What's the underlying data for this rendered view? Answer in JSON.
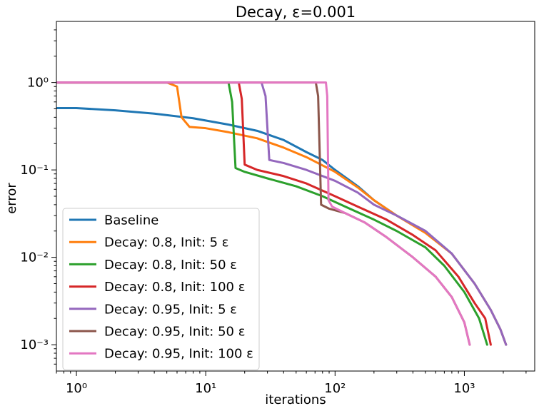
{
  "chart_data": {
    "type": "line",
    "title": "Decay, ε=0.001",
    "xlabel": "iterations",
    "ylabel": "error",
    "xscale": "log",
    "yscale": "log",
    "xlim": [
      0.7,
      3500
    ],
    "ylim": [
      0.0005,
      5
    ],
    "grid": false,
    "legend_position": "lower-left",
    "x_ticks": [
      {
        "value": 1,
        "label": "10⁰"
      },
      {
        "value": 10,
        "label": "10¹"
      },
      {
        "value": 100,
        "label": "10²"
      },
      {
        "value": 1000,
        "label": "10³"
      }
    ],
    "y_ticks": [
      {
        "value": 0.001,
        "label": "10⁻³"
      },
      {
        "value": 0.01,
        "label": "10⁻²"
      },
      {
        "value": 0.1,
        "label": "10⁻¹"
      },
      {
        "value": 1,
        "label": "10⁰"
      }
    ],
    "series": [
      {
        "name": "Baseline",
        "color": "#1f77b4",
        "points": [
          [
            0.7,
            0.51
          ],
          [
            1,
            0.51
          ],
          [
            2,
            0.48
          ],
          [
            4,
            0.44
          ],
          [
            8,
            0.39
          ],
          [
            15,
            0.33
          ],
          [
            25,
            0.28
          ],
          [
            40,
            0.22
          ],
          [
            60,
            0.16
          ],
          [
            80,
            0.13
          ],
          [
            100,
            0.1
          ],
          [
            150,
            0.065
          ],
          [
            200,
            0.045
          ],
          [
            300,
            0.03
          ],
          [
            500,
            0.02
          ],
          [
            800,
            0.011
          ],
          [
            1200,
            0.005
          ],
          [
            1600,
            0.0025
          ],
          [
            1900,
            0.0015
          ],
          [
            2100,
            0.001
          ]
        ]
      },
      {
        "name": "Decay: 0.8, Init: 5 ε",
        "color": "#ff7f0e",
        "points": [
          [
            0.7,
            1
          ],
          [
            5,
            1
          ],
          [
            6,
            0.9
          ],
          [
            6.5,
            0.4
          ],
          [
            7.5,
            0.31
          ],
          [
            10,
            0.3
          ],
          [
            15,
            0.27
          ],
          [
            25,
            0.23
          ],
          [
            40,
            0.18
          ],
          [
            60,
            0.14
          ],
          [
            100,
            0.095
          ],
          [
            150,
            0.063
          ],
          [
            200,
            0.045
          ],
          [
            300,
            0.03
          ],
          [
            500,
            0.019
          ],
          [
            800,
            0.011
          ],
          [
            1200,
            0.005
          ],
          [
            1600,
            0.0025
          ],
          [
            1900,
            0.0015
          ],
          [
            2100,
            0.001
          ]
        ]
      },
      {
        "name": "Decay: 0.8, Init: 50 ε",
        "color": "#2ca02c",
        "points": [
          [
            0.7,
            1
          ],
          [
            15,
            1
          ],
          [
            16,
            0.6
          ],
          [
            17,
            0.105
          ],
          [
            20,
            0.095
          ],
          [
            30,
            0.08
          ],
          [
            50,
            0.065
          ],
          [
            80,
            0.05
          ],
          [
            120,
            0.038
          ],
          [
            200,
            0.027
          ],
          [
            300,
            0.02
          ],
          [
            500,
            0.013
          ],
          [
            700,
            0.008
          ],
          [
            1000,
            0.004
          ],
          [
            1300,
            0.002
          ],
          [
            1500,
            0.001
          ]
        ]
      },
      {
        "name": "Decay: 0.8, Init: 100 ε",
        "color": "#d62728",
        "points": [
          [
            0.7,
            1
          ],
          [
            18,
            1
          ],
          [
            19,
            0.65
          ],
          [
            20,
            0.115
          ],
          [
            25,
            0.1
          ],
          [
            40,
            0.085
          ],
          [
            60,
            0.07
          ],
          [
            100,
            0.05
          ],
          [
            150,
            0.038
          ],
          [
            250,
            0.027
          ],
          [
            400,
            0.018
          ],
          [
            600,
            0.012
          ],
          [
            900,
            0.006
          ],
          [
            1200,
            0.003
          ],
          [
            1450,
            0.002
          ],
          [
            1600,
            0.001
          ]
        ]
      },
      {
        "name": "Decay: 0.95, Init: 5 ε",
        "color": "#9467bd",
        "points": [
          [
            0.7,
            1
          ],
          [
            27,
            1
          ],
          [
            29,
            0.7
          ],
          [
            31,
            0.13
          ],
          [
            40,
            0.12
          ],
          [
            60,
            0.1
          ],
          [
            100,
            0.075
          ],
          [
            150,
            0.055
          ],
          [
            200,
            0.04
          ],
          [
            300,
            0.03
          ],
          [
            500,
            0.02
          ],
          [
            800,
            0.011
          ],
          [
            1200,
            0.005
          ],
          [
            1600,
            0.0025
          ],
          [
            1900,
            0.0015
          ],
          [
            2100,
            0.001
          ]
        ]
      },
      {
        "name": "Decay: 0.95, Init: 50 ε",
        "color": "#8c564b",
        "points": [
          [
            0.7,
            1
          ],
          [
            71,
            1
          ],
          [
            74,
            0.7
          ],
          [
            78,
            0.04
          ],
          [
            90,
            0.036
          ],
          [
            120,
            0.032
          ],
          [
            170,
            0.025
          ],
          [
            250,
            0.017
          ],
          [
            400,
            0.01
          ],
          [
            600,
            0.006
          ],
          [
            800,
            0.0035
          ],
          [
            1000,
            0.0018
          ],
          [
            1100,
            0.001
          ]
        ]
      },
      {
        "name": "Decay: 0.95, Init: 100 ε",
        "color": "#e377c2",
        "points": [
          [
            0.7,
            1
          ],
          [
            85,
            1
          ],
          [
            87,
            0.7
          ],
          [
            89,
            0.045
          ],
          [
            95,
            0.038
          ],
          [
            120,
            0.032
          ],
          [
            170,
            0.025
          ],
          [
            250,
            0.017
          ],
          [
            400,
            0.01
          ],
          [
            600,
            0.006
          ],
          [
            800,
            0.0035
          ],
          [
            1000,
            0.0018
          ],
          [
            1100,
            0.001
          ]
        ]
      }
    ]
  }
}
